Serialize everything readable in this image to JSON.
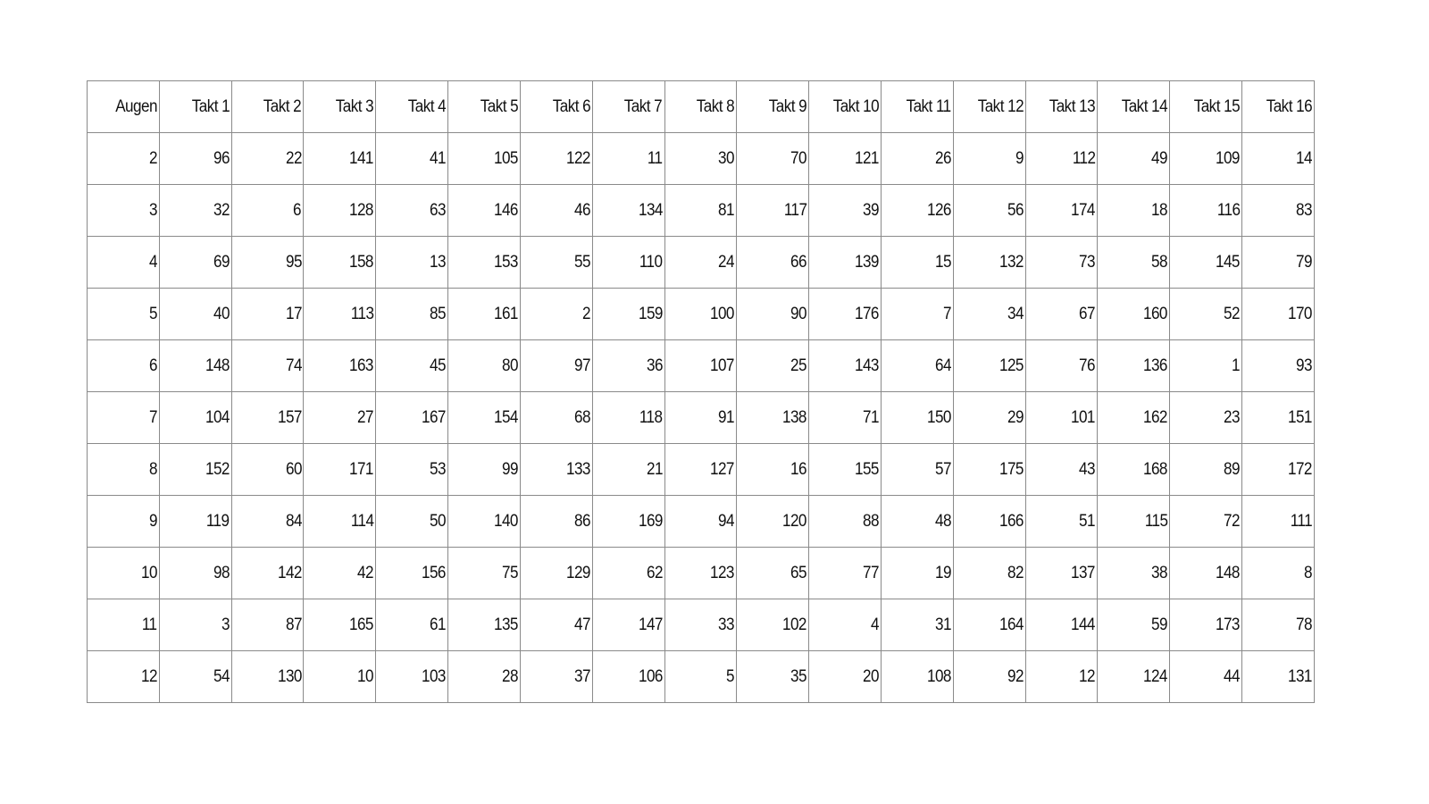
{
  "table": {
    "headers": [
      "Augen",
      "Takt 1",
      "Takt 2",
      "Takt 3",
      "Takt 4",
      "Takt 5",
      "Takt 6",
      "Takt 7",
      "Takt 8",
      "Takt 9",
      "Takt 10",
      "Takt 11",
      "Takt 12",
      "Takt 13",
      "Takt 14",
      "Takt 15",
      "Takt 16"
    ],
    "rows": [
      [
        "2",
        "96",
        "22",
        "141",
        "41",
        "105",
        "122",
        "11",
        "30",
        "70",
        "121",
        "26",
        "9",
        "112",
        "49",
        "109",
        "14"
      ],
      [
        "3",
        "32",
        "6",
        "128",
        "63",
        "146",
        "46",
        "134",
        "81",
        "117",
        "39",
        "126",
        "56",
        "174",
        "18",
        "116",
        "83"
      ],
      [
        "4",
        "69",
        "95",
        "158",
        "13",
        "153",
        "55",
        "110",
        "24",
        "66",
        "139",
        "15",
        "132",
        "73",
        "58",
        "145",
        "79"
      ],
      [
        "5",
        "40",
        "17",
        "113",
        "85",
        "161",
        "2",
        "159",
        "100",
        "90",
        "176",
        "7",
        "34",
        "67",
        "160",
        "52",
        "170"
      ],
      [
        "6",
        "148",
        "74",
        "163",
        "45",
        "80",
        "97",
        "36",
        "107",
        "25",
        "143",
        "64",
        "125",
        "76",
        "136",
        "1",
        "93"
      ],
      [
        "7",
        "104",
        "157",
        "27",
        "167",
        "154",
        "68",
        "118",
        "91",
        "138",
        "71",
        "150",
        "29",
        "101",
        "162",
        "23",
        "151"
      ],
      [
        "8",
        "152",
        "60",
        "171",
        "53",
        "99",
        "133",
        "21",
        "127",
        "16",
        "155",
        "57",
        "175",
        "43",
        "168",
        "89",
        "172"
      ],
      [
        "9",
        "119",
        "84",
        "114",
        "50",
        "140",
        "86",
        "169",
        "94",
        "120",
        "88",
        "48",
        "166",
        "51",
        "115",
        "72",
        "111"
      ],
      [
        "10",
        "98",
        "142",
        "42",
        "156",
        "75",
        "129",
        "62",
        "123",
        "65",
        "77",
        "19",
        "82",
        "137",
        "38",
        "148",
        "8"
      ],
      [
        "11",
        "3",
        "87",
        "165",
        "61",
        "135",
        "47",
        "147",
        "33",
        "102",
        "4",
        "31",
        "164",
        "144",
        "59",
        "173",
        "78"
      ],
      [
        "12",
        "54",
        "130",
        "10",
        "103",
        "28",
        "37",
        "106",
        "5",
        "35",
        "20",
        "108",
        "92",
        "12",
        "124",
        "44",
        "131"
      ]
    ]
  }
}
